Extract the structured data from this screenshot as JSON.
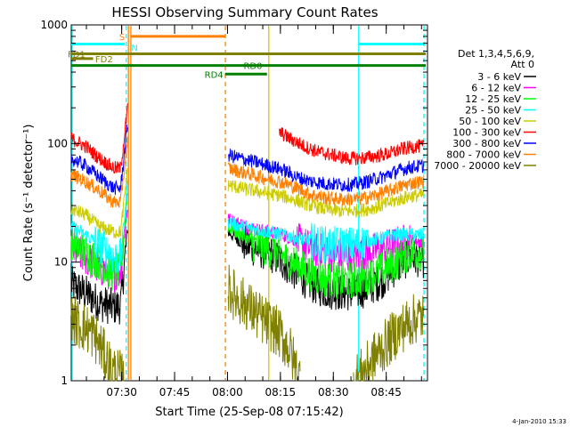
{
  "chart_data": {
    "type": "line",
    "title": "HESSI Observing Summary Count Rates",
    "xlabel": "Start Time (25-Sep-08 07:15:42)",
    "ylabel": "Count Rate (s⁻¹ detector⁻¹)",
    "yscale": "log",
    "ylim": [
      1,
      1000
    ],
    "xlim_minutes": [
      0,
      101
    ],
    "xticks": [
      {
        "minutes": 14.3,
        "label": "07:30"
      },
      {
        "minutes": 29.3,
        "label": "07:45"
      },
      {
        "minutes": 44.3,
        "label": "08:00"
      },
      {
        "minutes": 59.3,
        "label": "08:15"
      },
      {
        "minutes": 74.3,
        "label": "08:30"
      },
      {
        "minutes": 89.3,
        "label": "08:45"
      }
    ],
    "yticks": [
      {
        "value": 1,
        "label": "1"
      },
      {
        "value": 10,
        "label": "10"
      },
      {
        "value": 100,
        "label": "100"
      },
      {
        "value": 1000,
        "label": "1000"
      }
    ],
    "legend_header": [
      "Det 1,3,4,5,6,9,",
      "Att 0"
    ],
    "legend_position": "right",
    "series": [
      {
        "name": "3 - 6 keV",
        "color": "#000000",
        "segments": [
          {
            "x": [
              0,
              4,
              8,
              12,
              14,
              16
            ],
            "y": [
              6.5,
              5.5,
              4.5,
              4.2,
              4.3,
              20
            ]
          },
          {
            "x": [
              44.5,
              48,
              52,
              56,
              60,
              64,
              68,
              72,
              76,
              80,
              84,
              88,
              92,
              96,
              100
            ],
            "y": [
              18,
              15,
              13,
              12,
              10,
              8,
              6.5,
              5.8,
              5.6,
              5.5,
              6,
              7,
              9,
              11,
              10.5
            ]
          }
        ]
      },
      {
        "name": "6 - 12 keV",
        "color": "#ff00ff",
        "segments": [
          {
            "x": [
              0,
              4,
              8,
              12,
              14,
              16
            ],
            "y": [
              13,
              11,
              9,
              8,
              8.5,
              30
            ]
          },
          {
            "x": [
              44.5,
              48,
              52,
              56,
              60,
              64,
              68,
              72,
              76,
              80,
              84,
              88,
              92,
              96,
              100
            ],
            "y": [
              23,
              21,
              19,
              18,
              17,
              15,
              13,
              12,
              11.5,
              11.3,
              12,
              13,
              14,
              15,
              15
            ]
          }
        ]
      },
      {
        "name": "12 - 25 keV",
        "color": "#00ff00",
        "segments": [
          {
            "x": [
              0,
              4,
              8,
              12,
              14,
              16
            ],
            "y": [
              15,
              12,
              10,
              8,
              8.5,
              40
            ]
          },
          {
            "x": [
              44.5,
              48,
              52,
              56,
              60,
              64,
              68,
              72,
              76,
              80,
              84,
              88,
              92,
              96,
              100
            ],
            "y": [
              20,
              17,
              14,
              13,
              11,
              9.5,
              8,
              7.2,
              7,
              7.1,
              7.5,
              8.5,
              10,
              12,
              12.5
            ]
          }
        ]
      },
      {
        "name": "25 - 50 keV",
        "color": "#00ffff",
        "segments": [
          {
            "x": [
              0,
              4,
              8,
              12,
              14,
              16
            ],
            "y": [
              20,
              17,
              14,
              11,
              11,
              45
            ]
          },
          {
            "x": [
              44.5,
              48,
              52,
              56,
              60,
              64,
              68,
              72,
              76,
              80,
              84,
              88,
              92,
              96,
              100
            ],
            "y": [
              22,
              20,
              19,
              18,
              17,
              16,
              15,
              14,
              14,
              14,
              15,
              16,
              17,
              17,
              17
            ]
          }
        ]
      },
      {
        "name": "50 - 100 keV",
        "color": "#cccc00",
        "segments": [
          {
            "x": [
              0,
              4,
              8,
              12,
              14,
              16
            ],
            "y": [
              28,
              25,
              20,
              18,
              18,
              60
            ]
          },
          {
            "x": [
              44.5,
              48,
              52,
              56,
              60,
              64,
              68,
              72,
              76,
              80,
              84,
              88,
              92,
              96,
              100
            ],
            "y": [
              45,
              42,
              40,
              38,
              36,
              33,
              30,
              28,
              27,
              27,
              28,
              30,
              33,
              36,
              37
            ]
          }
        ]
      },
      {
        "name": "100 - 300 keV",
        "color": "#ff0000",
        "segments": [
          {
            "x": [
              0,
              4,
              8,
              12,
              14,
              16
            ],
            "y": [
              110,
              95,
              75,
              62,
              62,
              200
            ]
          },
          {
            "x": [
              59,
              62,
              66,
              70,
              74,
              78,
              82,
              86,
              90,
              94,
              98,
              100
            ],
            "y": [
              125,
              110,
              95,
              85,
              80,
              75,
              75,
              78,
              82,
              90,
              95,
              94
            ]
          }
        ]
      },
      {
        "name": "300 - 800 keV",
        "color": "#0000ff",
        "segments": [
          {
            "x": [
              0,
              4,
              8,
              12,
              14,
              16
            ],
            "y": [
              75,
              65,
              52,
              42,
              42,
              150
            ]
          },
          {
            "x": [
              44.5,
              48,
              52,
              56,
              60,
              64,
              68,
              72,
              76,
              80,
              84,
              88,
              92,
              96,
              100
            ],
            "y": [
              80,
              75,
              70,
              65,
              60,
              52,
              48,
              46,
              45,
              45,
              48,
              52,
              58,
              63,
              65
            ]
          }
        ]
      },
      {
        "name": "800 - 7000 keV",
        "color": "#ff8000",
        "segments": [
          {
            "x": [
              0,
              4,
              8,
              12,
              14,
              16
            ],
            "y": [
              55,
              48,
              40,
              32,
              32,
              110
            ]
          },
          {
            "x": [
              44.5,
              48,
              52,
              56,
              60,
              64,
              68,
              72,
              76,
              80,
              84,
              88,
              92,
              96,
              100
            ],
            "y": [
              62,
              58,
              54,
              50,
              47,
              42,
              37,
              35,
              34,
              34,
              35,
              38,
              42,
              46,
              48
            ]
          }
        ]
      },
      {
        "name": "7000 - 20000 keV",
        "color": "#808000",
        "segments": [
          {
            "x": [
              0,
              2,
              4,
              6,
              8,
              10,
              12,
              14,
              15
            ],
            "y": [
              3.5,
              3,
              2.8,
              2.5,
              2,
              1.5,
              1.2,
              1.1,
              1
            ]
          },
          {
            "x": [
              44.5,
              47,
              50,
              53,
              56,
              59,
              62,
              65
            ],
            "y": [
              6,
              5,
              4.3,
              3.5,
              3,
              2.5,
              1.8,
              1
            ]
          },
          {
            "x": [
              80,
              83,
              86,
              89,
              92,
              95,
              98,
              100
            ],
            "y": [
              1,
              1.2,
              1.6,
              2,
              2.5,
              3,
              3.4,
              3.5
            ]
          }
        ]
      }
    ],
    "annotations": {
      "vertical_lines": [
        {
          "minutes": -0.2,
          "color": "#00ffff",
          "style": "solid"
        },
        {
          "minutes": 15.6,
          "color": "#00ffff",
          "style": "dashed"
        },
        {
          "minutes": 16.2,
          "color": "#ff8000",
          "style": "solid"
        },
        {
          "minutes": 16.9,
          "color": "#ff8000",
          "style": "solid"
        },
        {
          "minutes": 43.7,
          "color": "#ff8000",
          "style": "dashed"
        },
        {
          "minutes": 81.5,
          "color": "#00ffff",
          "style": "solid"
        },
        {
          "minutes": 100.0,
          "color": "#00ffff",
          "style": "dashed"
        },
        {
          "minutes": 56.0,
          "color": "#cccc00",
          "style": "solid"
        }
      ],
      "bars": [
        {
          "label": "",
          "color": "#00ffff",
          "x0": 0,
          "x1": 15.2,
          "level_value": 690
        },
        {
          "label": "S",
          "color": "#ff8000",
          "x0": 16.9,
          "x1": 43.6,
          "level_value": 800
        },
        {
          "label": "N",
          "color": "#00ffff",
          "x0": 16.5,
          "x1": 16.5,
          "level_value": 650
        },
        {
          "label": "",
          "color": "#00ffff",
          "x0": 81.5,
          "x1": 100.2,
          "level_value": 690
        },
        {
          "label": "FD1",
          "color": "#808000",
          "x0": 0,
          "x1": 100.5,
          "level_value": 570
        },
        {
          "label": "FD2",
          "color": "#808000",
          "x0": 0,
          "x1": 6.2,
          "level_value": 520
        },
        {
          "label": "RD0",
          "color": "#008000",
          "x0": 43.6,
          "x1": 100.5,
          "level_value": 455
        },
        {
          "label": "",
          "color": "#008000",
          "x0": 0,
          "x1": 43.6,
          "level_value": 455
        },
        {
          "label": "RD4",
          "color": "#008000",
          "x0": 43.6,
          "x1": 55.5,
          "level_value": 385
        }
      ]
    },
    "footer_timestamp": "4-Jan-2010 15:33"
  }
}
